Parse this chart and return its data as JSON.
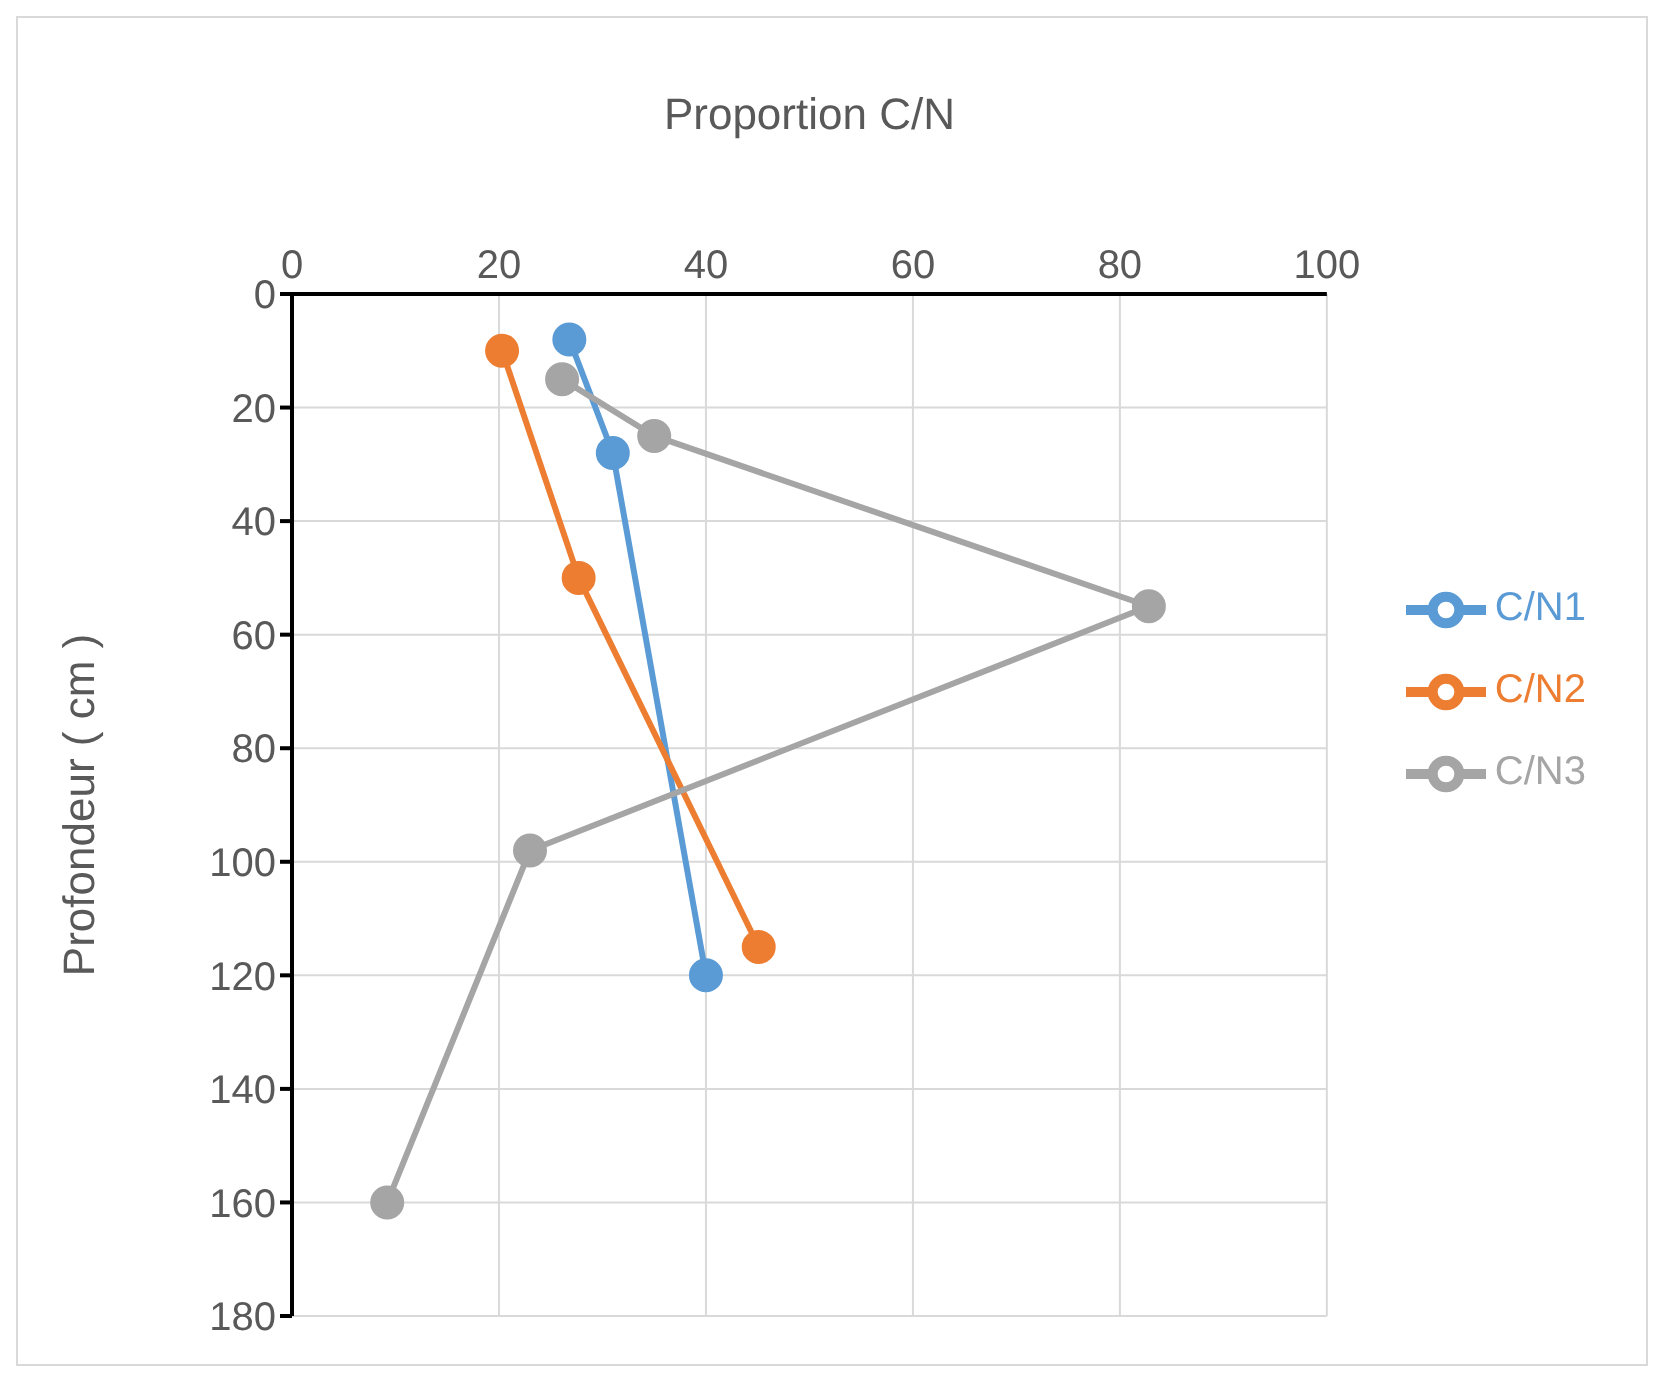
{
  "chart_data": {
    "type": "line",
    "xlabel": "Proportion C/N",
    "ylabel": "Profondeur ( cm )",
    "xlim": [
      0,
      100
    ],
    "xticks": [
      0,
      20,
      40,
      60,
      80,
      100
    ],
    "ylim": [
      180,
      0
    ],
    "yticks": [
      0,
      20,
      40,
      60,
      80,
      100,
      120,
      140,
      160,
      180
    ],
    "grid": true,
    "legend": "right",
    "marker": "circle",
    "line_style": "solid",
    "series": [
      {
        "name": "C/N1",
        "color": "#5b9bd5",
        "x": [
          26.8,
          31.0,
          40.0
        ],
        "values": [
          8,
          28,
          120
        ]
      },
      {
        "name": "C/N2",
        "color": "#ed7d31",
        "x": [
          20.3,
          27.7,
          45.1
        ],
        "values": [
          10,
          50,
          115
        ]
      },
      {
        "name": "C/N3",
        "color": "#a5a5a5",
        "x": [
          26.1,
          35.0,
          82.8,
          23.0,
          9.2
        ],
        "values": [
          15,
          25,
          55,
          98,
          160
        ]
      }
    ]
  }
}
